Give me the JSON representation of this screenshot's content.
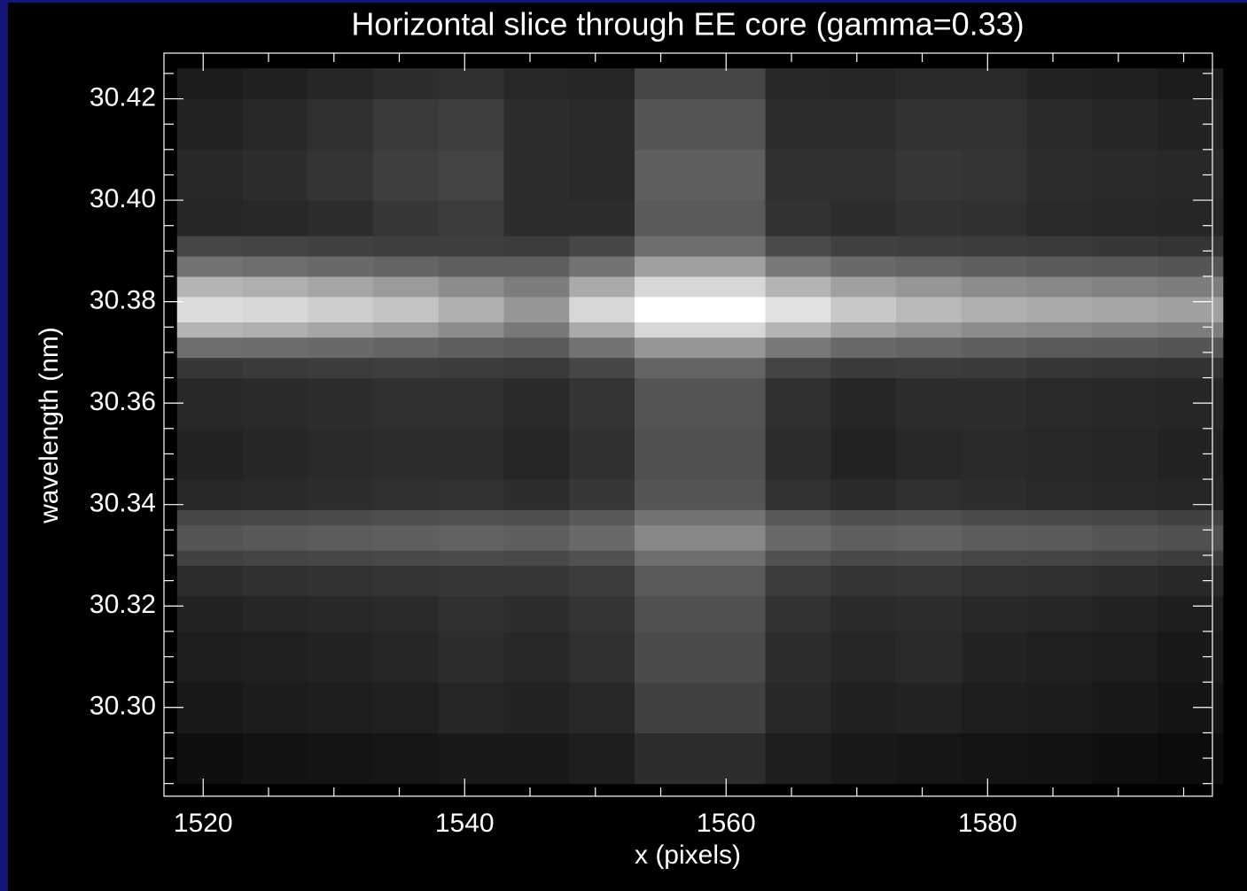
{
  "chart_data": {
    "type": "heatmap",
    "title": "Horizontal slice through EE core (gamma=0.33)",
    "x_label": "x (pixels)",
    "y_label": "wavelength (nm)",
    "xlim": [
      1517,
      1597.2
    ],
    "ylim": [
      30.2825,
      30.429
    ],
    "xticks": [
      1520,
      1540,
      1560,
      1580
    ],
    "xminor_ticks": [
      1525,
      1530,
      1535,
      1545,
      1550,
      1555,
      1565,
      1570,
      1575,
      1585,
      1590,
      1595
    ],
    "yticks": [
      {
        "value": 30.3,
        "label": "30.30"
      },
      30.32,
      30.34,
      30.36,
      30.38,
      {
        "value": 30.4,
        "label": "30.40"
      },
      30.42
    ],
    "yminor_ticks": [
      30.285,
      30.29,
      30.295,
      30.305,
      30.31,
      30.315,
      30.325,
      30.33,
      30.335,
      30.345,
      30.35,
      30.355,
      30.365,
      30.37,
      30.375,
      30.385,
      30.39,
      30.395,
      30.405,
      30.41,
      30.415,
      30.425
    ],
    "x_edges": [
      1518,
      1523,
      1528,
      1533,
      1538,
      1543,
      1548,
      1553,
      1558,
      1563,
      1568,
      1573,
      1578,
      1583,
      1588,
      1593,
      1598
    ],
    "y_edges": [
      30.285,
      30.295,
      30.305,
      30.315,
      30.322,
      30.328,
      30.331,
      30.336,
      30.339,
      30.345,
      30.355,
      30.365,
      30.369,
      30.373,
      30.376,
      30.381,
      30.385,
      30.389,
      30.393,
      30.4,
      30.41,
      30.42,
      30.426
    ],
    "z": [
      [
        15,
        18,
        20,
        22,
        25,
        25,
        30,
        45,
        45,
        30,
        25,
        22,
        20,
        18,
        15,
        12
      ],
      [
        25,
        28,
        30,
        32,
        38,
        35,
        40,
        65,
        65,
        40,
        32,
        35,
        30,
        28,
        25,
        20
      ],
      [
        30,
        32,
        35,
        38,
        45,
        40,
        48,
        75,
        75,
        45,
        38,
        42,
        35,
        32,
        30,
        25
      ],
      [
        35,
        38,
        40,
        42,
        48,
        45,
        52,
        80,
        80,
        50,
        42,
        45,
        40,
        38,
        35,
        30
      ],
      [
        45,
        48,
        50,
        52,
        55,
        55,
        60,
        90,
        90,
        60,
        52,
        55,
        50,
        48,
        45,
        40
      ],
      [
        65,
        68,
        70,
        72,
        75,
        72,
        80,
        110,
        110,
        80,
        72,
        75,
        70,
        68,
        65,
        60
      ],
      [
        85,
        88,
        92,
        95,
        98,
        95,
        105,
        135,
        135,
        105,
        95,
        98,
        92,
        90,
        85,
        80
      ],
      [
        70,
        72,
        75,
        78,
        80,
        78,
        88,
        115,
        115,
        88,
        78,
        80,
        75,
        72,
        70,
        65
      ],
      [
        40,
        42,
        45,
        48,
        50,
        45,
        55,
        85,
        85,
        50,
        42,
        48,
        45,
        42,
        40,
        38
      ],
      [
        35,
        38,
        42,
        45,
        45,
        38,
        48,
        80,
        80,
        45,
        35,
        40,
        42,
        40,
        38,
        35
      ],
      [
        40,
        42,
        45,
        48,
        48,
        42,
        52,
        85,
        85,
        48,
        38,
        45,
        45,
        42,
        40,
        38
      ],
      [
        55,
        58,
        60,
        62,
        60,
        58,
        70,
        100,
        100,
        68,
        58,
        60,
        58,
        55,
        52,
        50
      ],
      [
        110,
        108,
        105,
        100,
        95,
        90,
        115,
        150,
        150,
        120,
        105,
        100,
        95,
        90,
        88,
        85
      ],
      [
        180,
        175,
        165,
        155,
        140,
        120,
        170,
        215,
        215,
        180,
        160,
        150,
        140,
        135,
        130,
        125
      ],
      [
        220,
        215,
        205,
        195,
        175,
        150,
        215,
        255,
        255,
        225,
        200,
        185,
        175,
        170,
        165,
        160
      ],
      [
        180,
        175,
        165,
        155,
        140,
        125,
        170,
        215,
        215,
        180,
        160,
        150,
        140,
        135,
        130,
        125
      ],
      [
        115,
        110,
        105,
        100,
        95,
        95,
        115,
        160,
        160,
        120,
        105,
        100,
        95,
        90,
        88,
        85
      ],
      [
        70,
        68,
        65,
        62,
        62,
        60,
        70,
        110,
        110,
        75,
        65,
        62,
        60,
        58,
        55,
        52
      ],
      [
        38,
        40,
        45,
        55,
        60,
        45,
        45,
        90,
        90,
        50,
        45,
        50,
        48,
        42,
        40,
        38
      ],
      [
        40,
        45,
        52,
        62,
        68,
        45,
        42,
        95,
        95,
        48,
        48,
        55,
        52,
        45,
        42,
        40
      ],
      [
        35,
        40,
        48,
        58,
        62,
        45,
        42,
        85,
        85,
        45,
        45,
        50,
        50,
        42,
        38,
        35
      ],
      [
        28,
        32,
        38,
        45,
        48,
        40,
        38,
        70,
        70,
        40,
        38,
        42,
        42,
        35,
        32,
        28
      ]
    ]
  }
}
